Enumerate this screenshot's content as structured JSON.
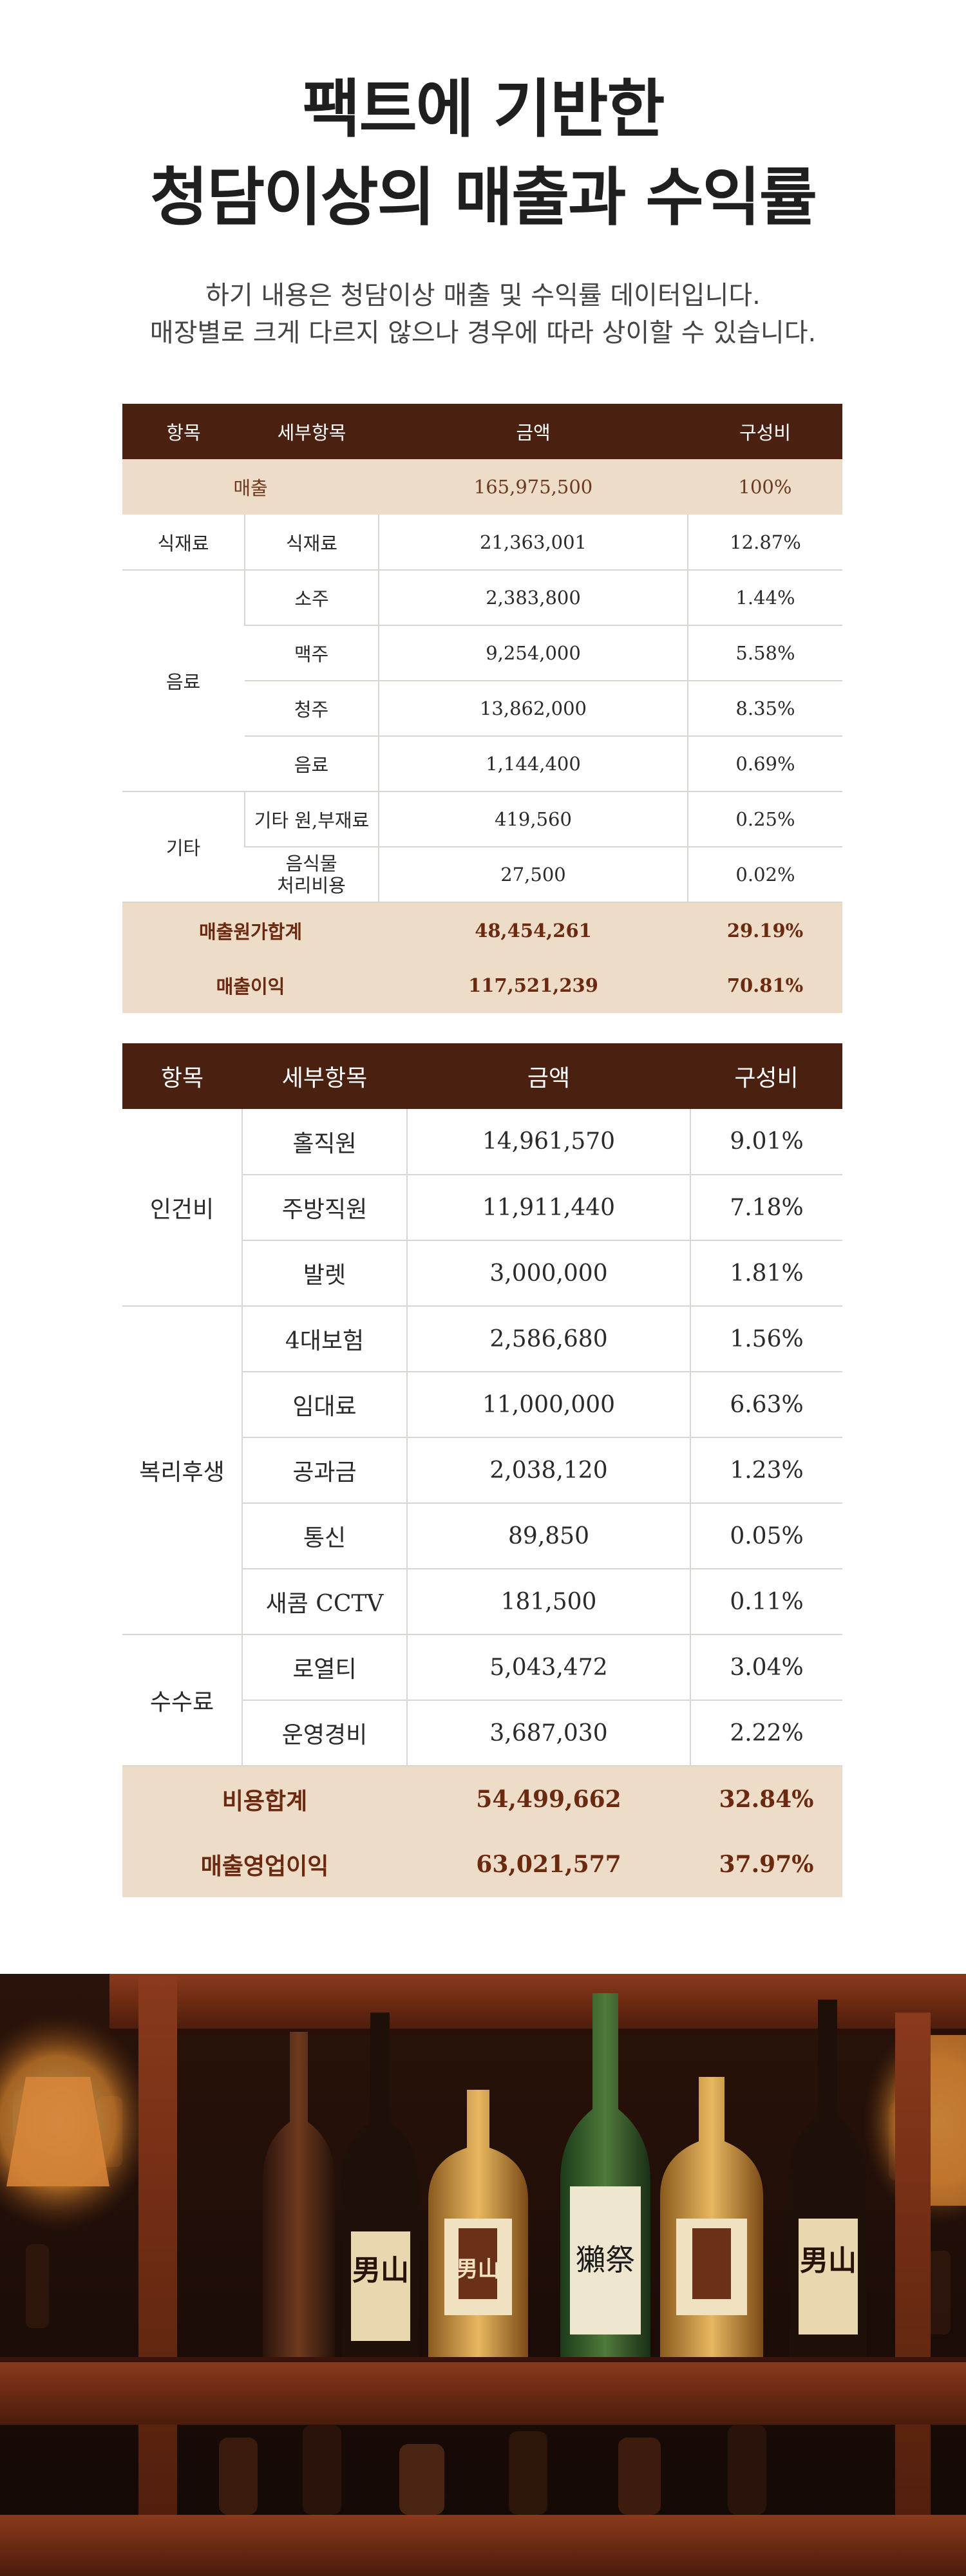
{
  "heading": {
    "line1": "팩트에 기반한",
    "line2": "청담이상의 매출과 수익률"
  },
  "intro": {
    "line1": "하기 내용은 청담이상 매출 및 수익률 데이터입니다.",
    "line2": "매장별로 크게 다르지 않으나 경우에 따라 상이할 수 있습니다."
  },
  "table1": {
    "headers": [
      "항목",
      "세부항목",
      "금액",
      "구성비"
    ],
    "sales": {
      "label": "매출",
      "amount": "165,975,500",
      "ratio": "100%"
    },
    "groups": [
      {
        "name": "식재료",
        "rows": [
          {
            "item": "식재료",
            "amount": "21,363,001",
            "ratio": "12.87%"
          }
        ]
      },
      {
        "name": "음료",
        "rows": [
          {
            "item": "소주",
            "amount": "2,383,800",
            "ratio": "1.44%"
          },
          {
            "item": "맥주",
            "amount": "9,254,000",
            "ratio": "5.58%"
          },
          {
            "item": "청주",
            "amount": "13,862,000",
            "ratio": "8.35%"
          },
          {
            "item": "음료",
            "amount": "1,144,400",
            "ratio": "0.69%"
          }
        ]
      },
      {
        "name": "기타",
        "rows": [
          {
            "item": "기타 원,부재료",
            "amount": "419,560",
            "ratio": "0.25%"
          },
          {
            "item_line1": "음식물",
            "item_line2": "처리비용",
            "amount": "27,500",
            "ratio": "0.02%"
          }
        ]
      }
    ],
    "cost_total": {
      "label": "매출원가합계",
      "amount": "48,454,261",
      "ratio": "29.19%"
    },
    "gross_profit": {
      "label": "매출이익",
      "amount": "117,521,239",
      "ratio": "70.81%"
    }
  },
  "table2": {
    "headers": [
      "항목",
      "세부항목",
      "금액",
      "구성비"
    ],
    "groups": [
      {
        "name": "인건비",
        "rows": [
          {
            "item": "홀직원",
            "amount": "14,961,570",
            "ratio": "9.01%"
          },
          {
            "item": "주방직원",
            "amount": "11,911,440",
            "ratio": "7.18%"
          },
          {
            "item": "발렛",
            "amount": "3,000,000",
            "ratio": "1.81%"
          }
        ]
      },
      {
        "name": "복리후생",
        "rows": [
          {
            "item": "4대보험",
            "amount": "2,586,680",
            "ratio": "1.56%"
          },
          {
            "item": "임대료",
            "amount": "11,000,000",
            "ratio": "6.63%"
          },
          {
            "item": "공과금",
            "amount": "2,038,120",
            "ratio": "1.23%"
          },
          {
            "item": "통신",
            "amount": "89,850",
            "ratio": "0.05%"
          },
          {
            "item": "새콤 CCTV",
            "amount": "181,500",
            "ratio": "0.11%"
          }
        ]
      },
      {
        "name": "수수료",
        "rows": [
          {
            "item": "로열티",
            "amount": "5,043,472",
            "ratio": "3.04%"
          },
          {
            "item": "운영경비",
            "amount": "3,687,030",
            "ratio": "2.22%"
          }
        ]
      }
    ],
    "cost_total": {
      "label": "비용합계",
      "amount": "54,499,662",
      "ratio": "32.84%"
    },
    "operating_profit": {
      "label": "매출영업이익",
      "amount": "63,021,577",
      "ratio": "37.97%"
    }
  },
  "photo": {
    "label_1": "男山",
    "label_2": "男山",
    "label_3": "獺祭",
    "label_4": "男山"
  }
}
